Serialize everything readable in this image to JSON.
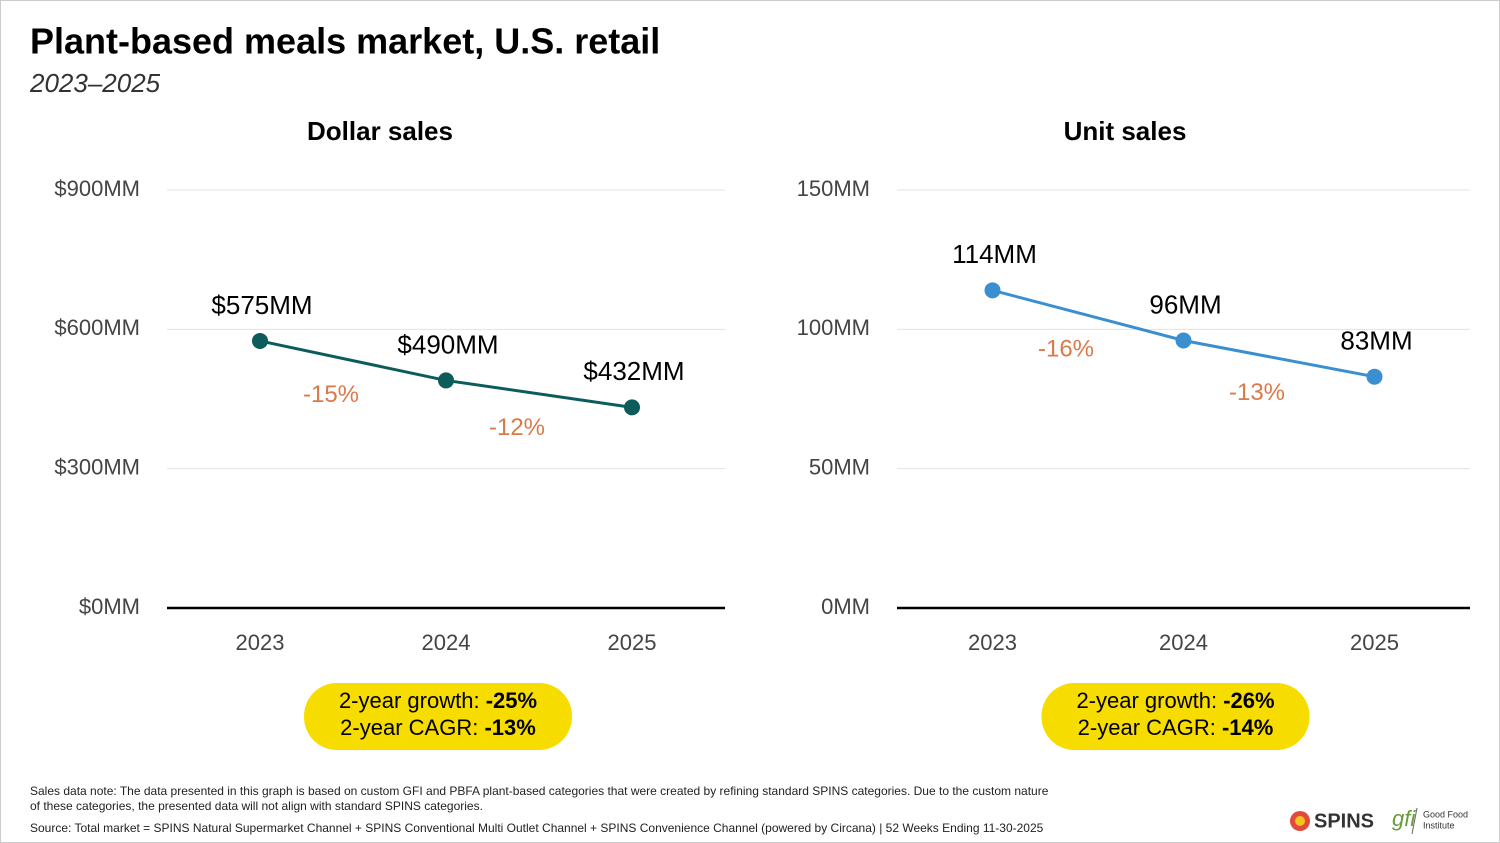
{
  "title": "Plant-based meals market, U.S. retail",
  "subtitle": "2023–2025",
  "chart_data": [
    {
      "type": "line",
      "title": "Dollar sales",
      "categories": [
        "2023",
        "2024",
        "2025"
      ],
      "series": [
        {
          "name": "Dollar sales",
          "color": "#0d5c5c",
          "values": [
            575,
            490,
            432
          ],
          "value_labels": [
            "$575MM",
            "$490MM",
            "$432MM"
          ]
        }
      ],
      "change_labels": [
        "-15%",
        "-12%"
      ],
      "ylim": [
        0,
        900
      ],
      "yticks": [
        {
          "value": 0,
          "label": "$0MM"
        },
        {
          "value": 300,
          "label": "$300MM"
        },
        {
          "value": 600,
          "label": "$600MM"
        },
        {
          "value": 900,
          "label": "$900MM"
        }
      ],
      "grid": true,
      "summary": [
        {
          "label": "2-year growth:",
          "value": "-25%"
        },
        {
          "label": "2-year CAGR:",
          "value": "-13%"
        }
      ]
    },
    {
      "type": "line",
      "title": "Unit sales",
      "categories": [
        "2023",
        "2024",
        "2025"
      ],
      "series": [
        {
          "name": "Unit sales",
          "color": "#3a8fd0",
          "values": [
            114,
            96,
            83
          ],
          "value_labels": [
            "114MM",
            "96MM",
            "83MM"
          ]
        }
      ],
      "change_labels": [
        "-16%",
        "-13%"
      ],
      "ylim": [
        0,
        150
      ],
      "yticks": [
        {
          "value": 0,
          "label": "0MM"
        },
        {
          "value": 50,
          "label": "50MM"
        },
        {
          "value": 100,
          "label": "100MM"
        },
        {
          "value": 150,
          "label": "150MM"
        }
      ],
      "grid": true,
      "summary": [
        {
          "label": "2-year growth:",
          "value": "-26%"
        },
        {
          "label": "2-year CAGR:",
          "value": "-14%"
        }
      ]
    }
  ],
  "notes": [
    "Sales data note: The data presented in this graph is based on custom GFI and PBFA plant-based categories that were created by refining standard SPINS categories. Due to the custom nature",
    "of these categories, the presented data will not align with standard SPINS categories.",
    "Source: Total market = SPINS Natural Supermarket Channel + SPINS Conventional Multi Outlet Channel + SPINS Convenience Channel (powered by Circana) | 52 Weeks Ending 11-30-2025"
  ],
  "logos": [
    "SPINS",
    "gfi",
    "Good Food",
    "Institute"
  ]
}
